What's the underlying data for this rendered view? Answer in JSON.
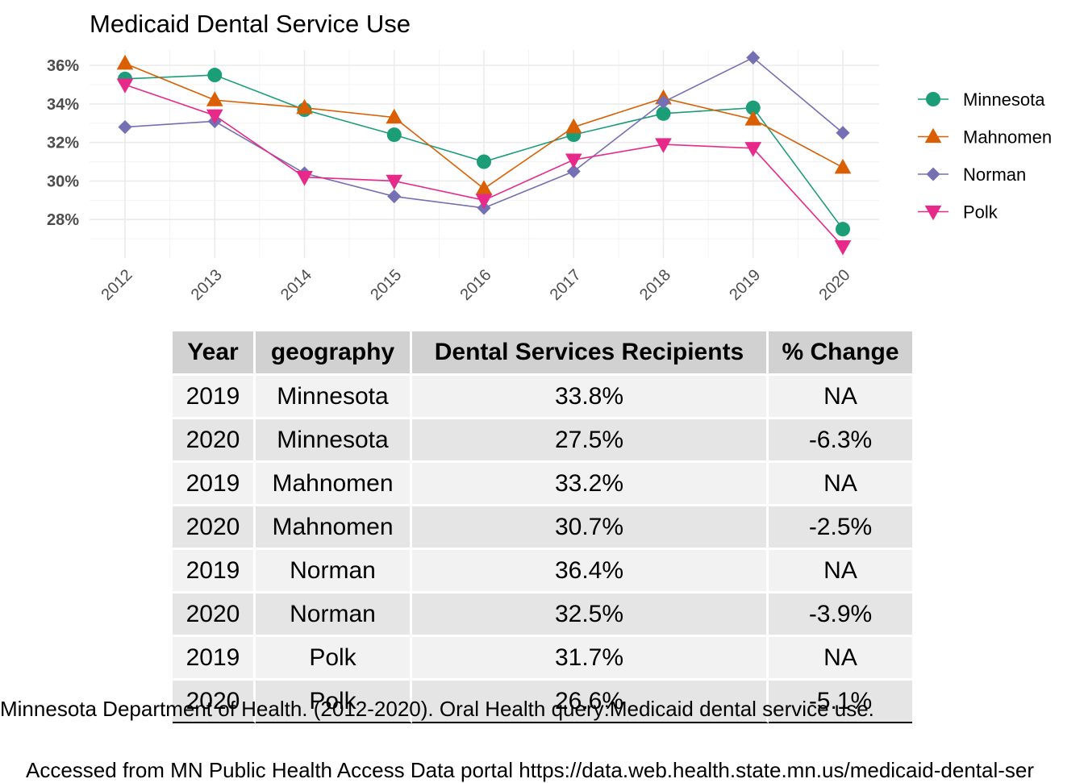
{
  "chart_data": {
    "type": "line",
    "title": "Medicaid Dental Service Use",
    "xlabel": "",
    "ylabel": "",
    "x": [
      2012,
      2013,
      2014,
      2015,
      2016,
      2017,
      2018,
      2019,
      2020
    ],
    "x_tick_labels": [
      "2012",
      "2013",
      "2014",
      "2015",
      "2016",
      "2017",
      "2018",
      "2019",
      "2020"
    ],
    "y_ticks": [
      28,
      30,
      32,
      34,
      36
    ],
    "y_tick_labels": [
      "28%",
      "30%",
      "32%",
      "34%",
      "36%"
    ],
    "ylim": [
      26.0,
      36.8
    ],
    "grid": true,
    "legend_position": "right",
    "series": [
      {
        "name": "Minnesota",
        "color": "#1b9e77",
        "marker": "circle",
        "values": [
          35.3,
          35.5,
          33.7,
          32.4,
          31.0,
          32.4,
          33.5,
          33.8,
          27.5
        ]
      },
      {
        "name": "Mahnomen",
        "color": "#d95f02",
        "marker": "triangle-up",
        "values": [
          36.1,
          34.2,
          33.8,
          33.3,
          29.6,
          32.8,
          34.3,
          33.2,
          30.7
        ]
      },
      {
        "name": "Norman",
        "color": "#7570b3",
        "marker": "diamond",
        "values": [
          32.8,
          33.1,
          30.4,
          29.2,
          28.6,
          30.5,
          34.1,
          36.4,
          32.5
        ]
      },
      {
        "name": "Polk",
        "color": "#e7298a",
        "marker": "triangle-down",
        "values": [
          35.0,
          33.4,
          30.2,
          30.0,
          29.0,
          31.1,
          31.9,
          31.7,
          26.6
        ]
      }
    ]
  },
  "table": {
    "headers": [
      "Year",
      "geography",
      "Dental Services Recipients",
      "% Change"
    ],
    "rows": [
      [
        "2019",
        "Minnesota",
        "33.8%",
        "NA"
      ],
      [
        "2020",
        "Minnesota",
        "27.5%",
        "-6.3%"
      ],
      [
        "2019",
        "Mahnomen",
        "33.2%",
        "NA"
      ],
      [
        "2020",
        "Mahnomen",
        "30.7%",
        "-2.5%"
      ],
      [
        "2019",
        "Norman",
        "36.4%",
        "NA"
      ],
      [
        "2020",
        "Norman",
        "32.5%",
        "-3.9%"
      ],
      [
        "2019",
        "Polk",
        "31.7%",
        "NA"
      ],
      [
        "2020",
        "Polk",
        "26.6%",
        "-5.1%"
      ]
    ]
  },
  "caption": {
    "line1": "Minnesota Department of Health. (2012-2020). Oral Health query:Medicaid dental service use.",
    "line2": "Accessed from MN Public Health Access Data portal https://data.web.health.state.mn.us/medicaid-dental-ser"
  }
}
